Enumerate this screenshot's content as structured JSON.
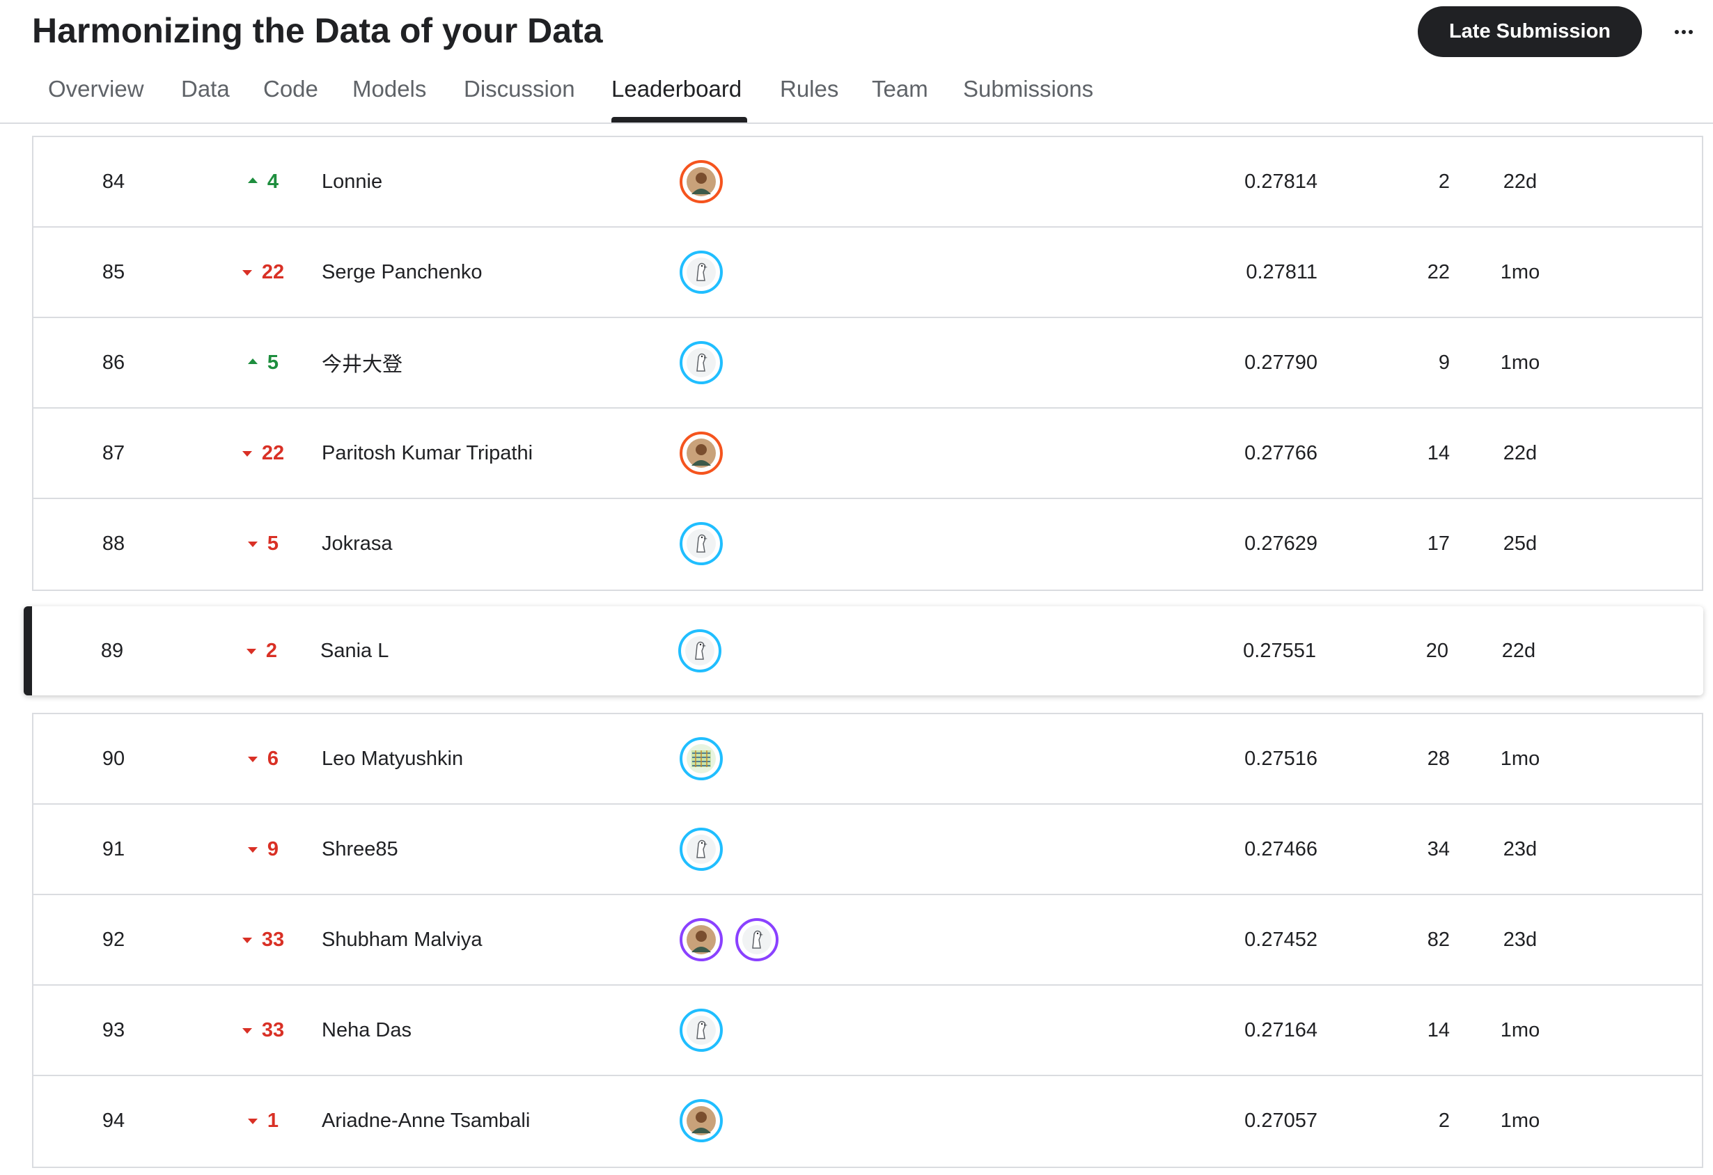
{
  "page": {
    "title": "Harmonizing the Data of your Data",
    "late_submission_label": "Late Submission"
  },
  "tabs": [
    {
      "label": "Overview"
    },
    {
      "label": "Data"
    },
    {
      "label": "Code"
    },
    {
      "label": "Models"
    },
    {
      "label": "Discussion"
    },
    {
      "label": "Leaderboard"
    },
    {
      "label": "Rules"
    },
    {
      "label": "Team"
    },
    {
      "label": "Submissions"
    }
  ],
  "active_tab": "Leaderboard",
  "colors": {
    "rank_up": "#1e8e3e",
    "rank_down": "#d93025",
    "avatar_ring_blue": "#20beff",
    "avatar_ring_orange": "#f5541e",
    "avatar_ring_purple": "#8a41ff",
    "primary_dark": "#202124"
  },
  "rows_top": [
    {
      "rank": "84",
      "delta": "4",
      "direction": "up",
      "name": "Lonnie",
      "avatars": [
        {
          "icon": "user-photo-icon",
          "ring": "orange"
        }
      ],
      "score": "0.27814",
      "entries": "2",
      "last": "22d"
    },
    {
      "rank": "85",
      "delta": "22",
      "direction": "down",
      "name": "Serge Panchenko",
      "avatars": [
        {
          "icon": "default-goose-icon",
          "ring": "blue"
        }
      ],
      "score": "0.27811",
      "entries": "22",
      "last": "1mo"
    },
    {
      "rank": "86",
      "delta": "5",
      "direction": "up",
      "name": "今井大登",
      "avatars": [
        {
          "icon": "default-goose-icon",
          "ring": "blue"
        }
      ],
      "score": "0.27790",
      "entries": "9",
      "last": "1mo"
    },
    {
      "rank": "87",
      "delta": "22",
      "direction": "down",
      "name": "Paritosh Kumar Tripathi",
      "avatars": [
        {
          "icon": "user-photo-icon",
          "ring": "orange"
        }
      ],
      "score": "0.27766",
      "entries": "14",
      "last": "22d"
    },
    {
      "rank": "88",
      "delta": "5",
      "direction": "down",
      "name": "Jokrasa",
      "avatars": [
        {
          "icon": "default-goose-icon",
          "ring": "blue"
        }
      ],
      "score": "0.27629",
      "entries": "17",
      "last": "25d"
    }
  ],
  "row_highlight": {
    "rank": "89",
    "delta": "2",
    "direction": "down",
    "name": "Sania L",
    "avatars": [
      {
        "icon": "default-goose-icon",
        "ring": "blue"
      }
    ],
    "score": "0.27551",
    "entries": "20",
    "last": "22d"
  },
  "rows_bottom": [
    {
      "rank": "90",
      "delta": "6",
      "direction": "down",
      "name": "Leo Matyushkin",
      "avatars": [
        {
          "icon": "pattern-avatar-icon",
          "ring": "blue"
        }
      ],
      "score": "0.27516",
      "entries": "28",
      "last": "1mo"
    },
    {
      "rank": "91",
      "delta": "9",
      "direction": "down",
      "name": "Shree85",
      "avatars": [
        {
          "icon": "default-goose-icon",
          "ring": "blue"
        }
      ],
      "score": "0.27466",
      "entries": "34",
      "last": "23d"
    },
    {
      "rank": "92",
      "delta": "33",
      "direction": "down",
      "name": "Shubham Malviya",
      "avatars": [
        {
          "icon": "user-photo-icon",
          "ring": "purple"
        },
        {
          "icon": "default-goose-icon",
          "ring": "purple"
        }
      ],
      "score": "0.27452",
      "entries": "82",
      "last": "23d"
    },
    {
      "rank": "93",
      "delta": "33",
      "direction": "down",
      "name": "Neha Das",
      "avatars": [
        {
          "icon": "default-goose-icon",
          "ring": "blue"
        }
      ],
      "score": "0.27164",
      "entries": "14",
      "last": "1mo"
    },
    {
      "rank": "94",
      "delta": "1",
      "direction": "down",
      "name": "Ariadne-Anne Tsambali",
      "avatars": [
        {
          "icon": "user-photo-icon",
          "ring": "blue"
        }
      ],
      "score": "0.27057",
      "entries": "2",
      "last": "1mo"
    }
  ]
}
